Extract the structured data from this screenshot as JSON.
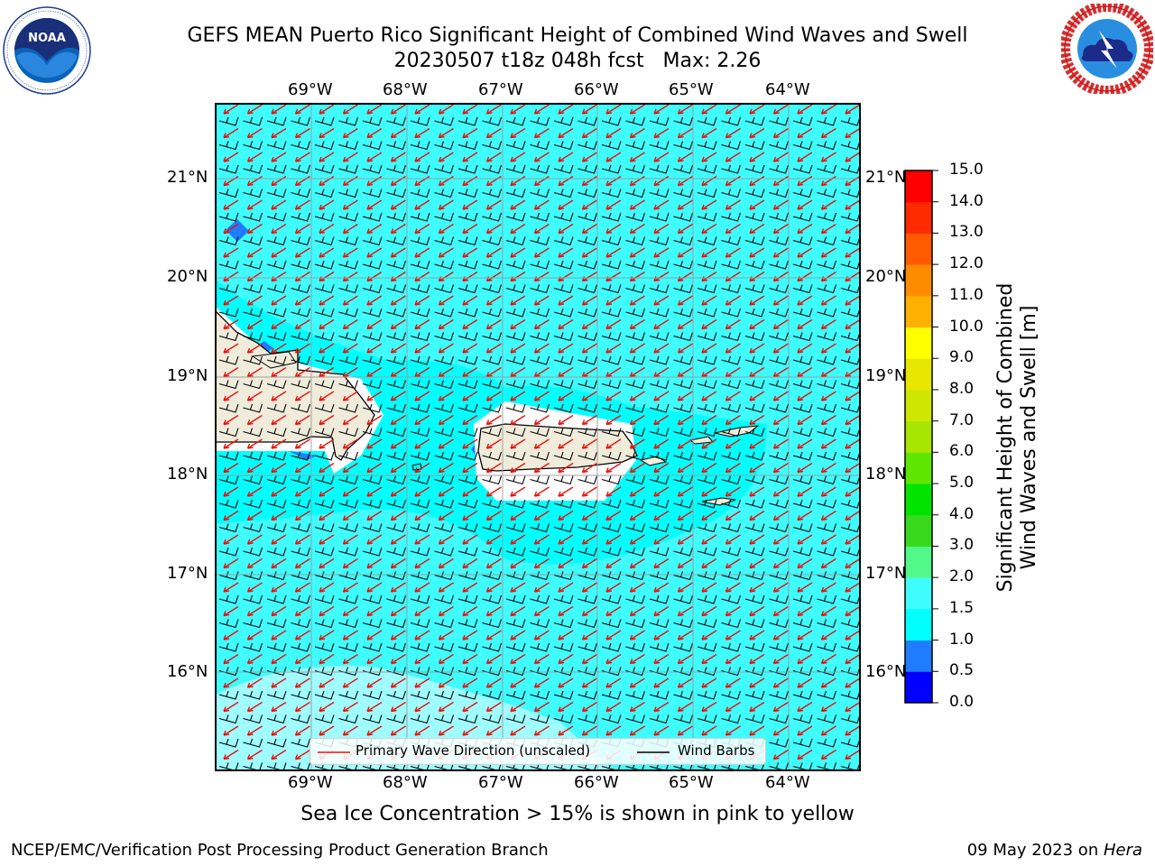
{
  "title": {
    "line1": "GEFS MEAN Puerto Rico Significant Height of Combined Wind Waves and Swell",
    "line2": "20230507 t18z 048h fcst   Max: 2.26"
  },
  "logos": {
    "left": {
      "name": "NOAA",
      "text": "NOAA",
      "ring_text": "NATIONAL OCEANIC AND ATMOSPHERIC ADMINISTRATION · U.S. DEPARTMENT OF COMMERCE"
    },
    "right": {
      "name": "National Weather Service",
      "ring_text": "NATIONAL WEATHER SERVICE"
    }
  },
  "map": {
    "lon_ticks": [
      "69°W",
      "68°W",
      "67°W",
      "66°W",
      "65°W",
      "64°W"
    ],
    "lat_ticks": [
      "21°N",
      "20°N",
      "19°N",
      "18°N",
      "17°N",
      "16°N"
    ],
    "ocean_color": "#3ffcff",
    "land_color": "#efecdc",
    "wave_arrow_color": "#e8140c",
    "barb_color": "#000000",
    "legend": {
      "wave_label": "Primary Wave Direction (unscaled)",
      "barb_label": "Wind Barbs"
    }
  },
  "colorbar": {
    "title_line1": "Significant Height of Combined",
    "title_line2": "Wind Waves and Swell [m]",
    "labels": [
      "15.0",
      "14.0",
      "13.0",
      "12.0",
      "11.0",
      "10.0",
      "9.0",
      "8.0",
      "7.0",
      "6.0",
      "5.0",
      "4.0",
      "3.0",
      "2.0",
      "1.5",
      "1.0",
      "0.5",
      "0.0"
    ],
    "colors": [
      "#0000ff",
      "#1f7cff",
      "#00ffff",
      "#3ffcff",
      "#9ffcff",
      "#52f98a",
      "#39d91e",
      "#00e400",
      "#5ee600",
      "#a6e600",
      "#cfe600",
      "#e6e600",
      "#ffff00",
      "#ffe400",
      "#ffb000",
      "#ff8c00",
      "#ff5a00",
      "#ff2a00",
      "#ff0000"
    ]
  },
  "note": "Sea Ice Concentration > 15% is shown in pink to yellow",
  "footer": {
    "left": "NCEP/EMC/Verification Post Processing Product Generation Branch",
    "right_date": "09 May 2023 on ",
    "right_machine": "Hera"
  }
}
